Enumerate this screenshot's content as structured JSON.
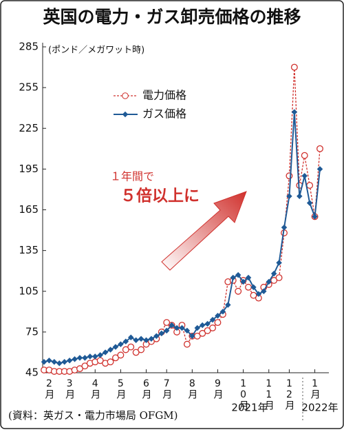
{
  "chart_data": {
    "type": "line",
    "title": "英国の電力・ガス卸売価格の推移",
    "y_label": "(ポンド／メガワット時)",
    "source": "(資料：英ガス・電力市場局 OFGM)",
    "annotations": [
      "１年間で",
      "５倍以上に"
    ],
    "year_labels": [
      "2021年",
      "2022年"
    ],
    "categories": [
      null,
      "2月",
      null,
      null,
      null,
      "3月",
      null,
      null,
      null,
      null,
      "4月",
      null,
      null,
      null,
      null,
      "5月",
      null,
      null,
      null,
      null,
      "6月",
      null,
      null,
      null,
      "7月",
      null,
      null,
      null,
      null,
      "8月",
      null,
      null,
      null,
      null,
      "9月",
      null,
      null,
      null,
      null,
      "10月",
      null,
      null,
      null,
      null,
      "11月",
      null,
      null,
      null,
      "12月",
      null,
      null,
      null,
      null,
      "1月",
      null
    ],
    "series": [
      {
        "name": "電力価格",
        "color": "#d0312d",
        "values": [
          47,
          47,
          46,
          46,
          46,
          46,
          47,
          48,
          50,
          52,
          53,
          54,
          52,
          53,
          56,
          58,
          62,
          64,
          60,
          62,
          66,
          68,
          70,
          75,
          82,
          80,
          75,
          80,
          66,
          72,
          72,
          74,
          76,
          78,
          82,
          88,
          112,
          113,
          105,
          113,
          108,
          102,
          100,
          108,
          110,
          113,
          115,
          148,
          190,
          270,
          183,
          205,
          183,
          160,
          210
        ]
      },
      {
        "name": "ガス価格",
        "color": "#1f5a96",
        "values": [
          53,
          54,
          53,
          52,
          53,
          54,
          55,
          56,
          56,
          57,
          57,
          58,
          60,
          62,
          64,
          66,
          68,
          71,
          69,
          70,
          69,
          70,
          72,
          74,
          76,
          80,
          78,
          78,
          76,
          72,
          78,
          80,
          81,
          84,
          87,
          90,
          95,
          115,
          117,
          112,
          115,
          108,
          103,
          105,
          112,
          118,
          126,
          152,
          175,
          237,
          175,
          190,
          170,
          160,
          195
        ]
      }
    ],
    "ylim": [
      45,
      285
    ],
    "yticks": [
      45,
      75,
      105,
      135,
      165,
      195,
      225,
      255,
      285
    ]
  }
}
